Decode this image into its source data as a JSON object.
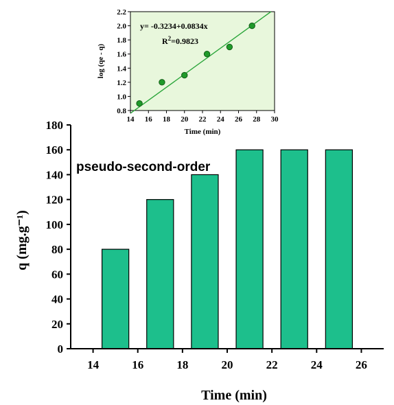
{
  "chart_data": [
    {
      "type": "bar",
      "x": [
        15,
        17,
        19,
        21,
        23,
        25
      ],
      "values": [
        80,
        120,
        140,
        160,
        160,
        160
      ],
      "xlabel": "Time (min)",
      "ylabel": "q (mg.g⁻¹)",
      "xlim": [
        13,
        27
      ],
      "xticks": [
        14,
        16,
        18,
        20,
        22,
        24,
        26
      ],
      "ylim": [
        0,
        180
      ],
      "yticks": [
        0,
        20,
        40,
        60,
        80,
        100,
        120,
        140,
        160,
        180
      ],
      "annotation": "pseudo-second-order",
      "colors": {
        "bar": "#1dbf8c",
        "bar_edge": "#000000"
      }
    },
    {
      "type": "scatter",
      "x": [
        15,
        17.5,
        20,
        22.5,
        25,
        27.5
      ],
      "y": [
        0.9,
        1.2,
        1.3,
        1.6,
        1.7,
        2.0
      ],
      "xlabel": "Time (min)",
      "ylabel": "log (qe - q)",
      "xlim": [
        14,
        30
      ],
      "xticks": [
        14,
        16,
        18,
        20,
        22,
        24,
        26,
        28,
        30
      ],
      "ylim": [
        0.8,
        2.2
      ],
      "yticks": [
        0.8,
        1.0,
        1.2,
        1.4,
        1.6,
        1.8,
        2.0,
        2.2
      ],
      "fit": {
        "intercept": -0.3234,
        "slope": 0.0834
      },
      "equation": "y= -0.3234+0.0834x",
      "r2_label": "R",
      "r2_sup": "2",
      "r2_value": "=0.9823",
      "colors": {
        "background": "#e8f7dc",
        "marker": "#1f9a2a",
        "marker_edge": "#145e18",
        "fit_line": "#2aa53a"
      }
    }
  ]
}
